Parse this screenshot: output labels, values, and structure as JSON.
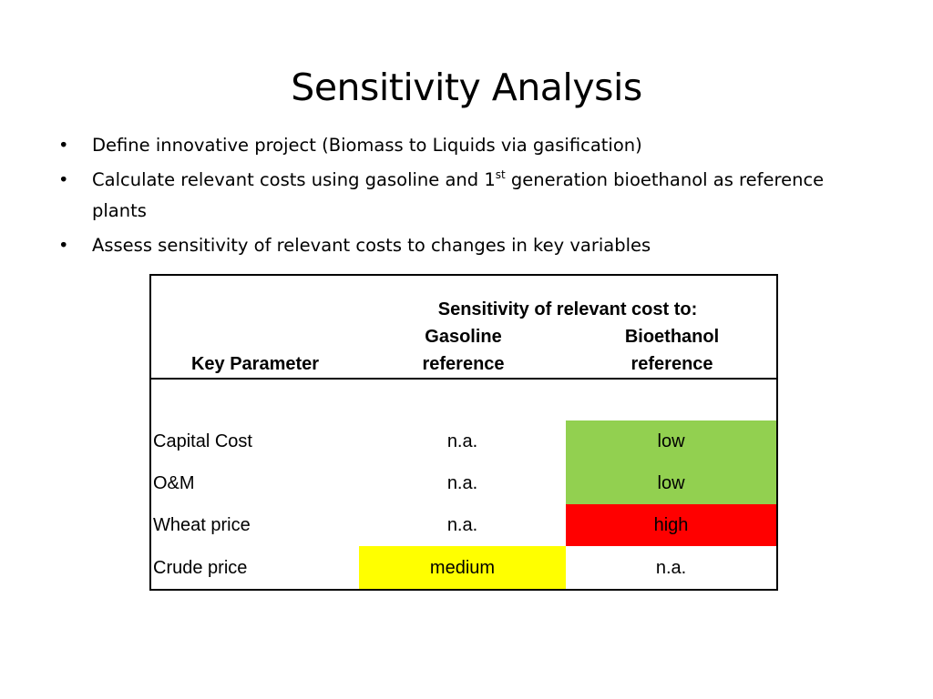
{
  "slide": {
    "title": "Sensitivity Analysis",
    "bullets": [
      {
        "text": "Define innovative project (Biomass to Liquids via gasification)"
      },
      {
        "text_before": "Calculate relevant costs using gasoline and 1",
        "superscript": "st",
        "text_after": " generation bioethanol as reference plants"
      },
      {
        "text": "Assess sensitivity of relevant costs to changes in key variables"
      }
    ],
    "bullet_glyph": "•"
  },
  "table": {
    "header": {
      "key_parameter": "Key Parameter",
      "group_title": "Sensitivity of relevant cost to:",
      "col_gasoline_line1": "Gasoline",
      "col_gasoline_line2": "reference",
      "col_bioethanol_line1": "Bioethanol",
      "col_bioethanol_line2": "reference"
    },
    "rows": [
      {
        "parameter": "Capital Cost",
        "gasoline": "n.a.",
        "bioethanol": "low"
      },
      {
        "parameter": "O&M",
        "gasoline": "n.a.",
        "bioethanol": "low"
      },
      {
        "parameter": "Wheat price",
        "gasoline": "n.a.",
        "bioethanol": "high"
      },
      {
        "parameter": "Crude price",
        "gasoline": "medium",
        "bioethanol": "n.a."
      }
    ],
    "level_colors": {
      "low": "#92d050",
      "medium": "#ffff00",
      "high": "#ff0000"
    }
  }
}
